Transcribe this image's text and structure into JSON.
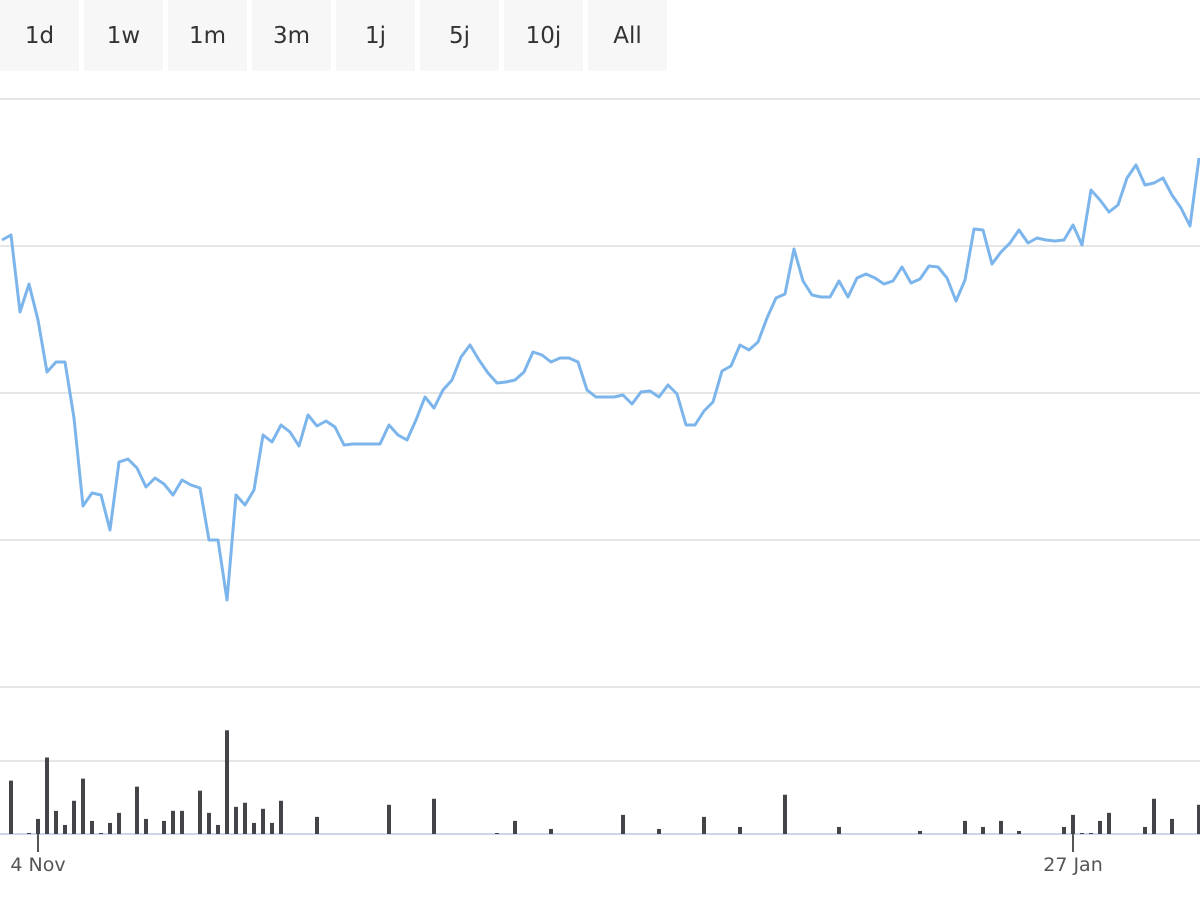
{
  "range_selector": {
    "buttons": [
      "1d",
      "1w",
      "1m",
      "3m",
      "1j",
      "5j",
      "10j",
      "All"
    ]
  },
  "chart_data": {
    "type": "line",
    "categories": [
      null,
      null,
      null,
      null,
      "4 Nov",
      null,
      null,
      null,
      null,
      null,
      null,
      null,
      null,
      null,
      null,
      null,
      null,
      null,
      null,
      null,
      null,
      null,
      null,
      null,
      null,
      null,
      null,
      null,
      null,
      null,
      null,
      null,
      null,
      null,
      null,
      null,
      null,
      null,
      null,
      null,
      null,
      null,
      null,
      null,
      null,
      null,
      null,
      null,
      null,
      null,
      null,
      null,
      null,
      null,
      null,
      null,
      null,
      null,
      null,
      null,
      null,
      null,
      null,
      null,
      null,
      null,
      null,
      null,
      null,
      null,
      null,
      null,
      null,
      null,
      null,
      null,
      null,
      null,
      null,
      null,
      null,
      null,
      null,
      null,
      null,
      null,
      null,
      null,
      null,
      null,
      null,
      null,
      null,
      null,
      null,
      null,
      null,
      null,
      null,
      null,
      null,
      null,
      null,
      null,
      null,
      null,
      null,
      null,
      null,
      null,
      null,
      null,
      null,
      null,
      null,
      null,
      null,
      null,
      null,
      "27 Jan",
      null,
      null,
      null,
      null,
      null,
      null,
      null,
      null,
      null,
      null,
      null,
      null,
      null,
      null
    ],
    "series": [
      {
        "color": "#7cb5ec",
        "values": [
          447,
          452,
          375,
          403,
          367,
          315,
          325,
          325,
          269,
          181,
          194,
          192,
          157,
          225,
          228,
          219,
          200,
          209,
          203,
          192,
          207,
          202,
          199,
          147,
          147,
          87,
          192,
          182,
          197,
          252,
          245,
          262,
          255,
          241,
          272,
          261,
          266,
          260,
          242,
          243,
          243,
          243,
          243,
          262,
          252,
          247,
          267,
          290,
          279,
          297,
          307,
          330,
          342,
          327,
          314,
          304,
          305,
          307,
          315,
          335,
          332,
          325,
          329,
          329,
          325,
          297,
          290,
          290,
          290,
          292,
          283,
          295,
          296,
          290,
          302,
          293,
          262,
          262,
          276,
          285,
          316,
          321,
          342,
          337,
          345,
          369,
          389,
          393,
          438,
          406,
          392,
          390,
          390,
          406,
          390,
          409,
          413,
          409,
          403,
          406,
          420,
          404,
          408,
          421,
          420,
          409,
          386,
          407,
          458,
          457,
          423,
          435,
          444,
          457,
          444,
          449,
          447,
          446,
          447,
          462,
          442,
          497,
          487,
          475,
          482,
          509,
          522,
          502,
          504,
          509,
          492,
          479,
          461,
          529
        ]
      },
      {
        "type": "bar",
        "axis": "y2",
        "color": "#434348",
        "values": [
          0,
          53,
          0,
          1,
          15,
          76,
          23,
          9,
          33,
          55,
          13,
          1,
          11,
          21,
          0,
          47,
          15,
          0,
          13,
          23,
          23,
          0,
          43,
          21,
          9,
          103,
          27,
          31,
          11,
          25,
          11,
          33,
          0,
          0,
          0,
          17,
          0,
          0,
          0,
          0,
          0,
          0,
          0,
          29,
          0,
          0,
          0,
          0,
          35,
          0,
          0,
          0,
          0,
          0,
          0,
          1,
          0,
          13,
          0,
          0,
          0,
          5,
          0,
          0,
          0,
          0,
          0,
          0,
          0,
          19,
          0,
          0,
          0,
          5,
          0,
          0,
          0,
          0,
          17,
          0,
          0,
          0,
          7,
          0,
          0,
          0,
          0,
          39,
          0,
          0,
          0,
          0,
          0,
          7,
          0,
          0,
          0,
          0,
          0,
          0,
          0,
          0,
          3,
          0,
          0,
          0,
          0,
          13,
          0,
          7,
          0,
          13,
          0,
          3,
          0,
          0,
          0,
          0,
          7,
          19,
          1,
          1,
          13,
          21,
          0,
          0,
          0,
          7,
          35,
          0,
          15,
          0,
          0,
          29
        ]
      }
    ],
    "ylim": [
      0,
      588
    ],
    "y2lim": [
      0,
      146
    ]
  }
}
